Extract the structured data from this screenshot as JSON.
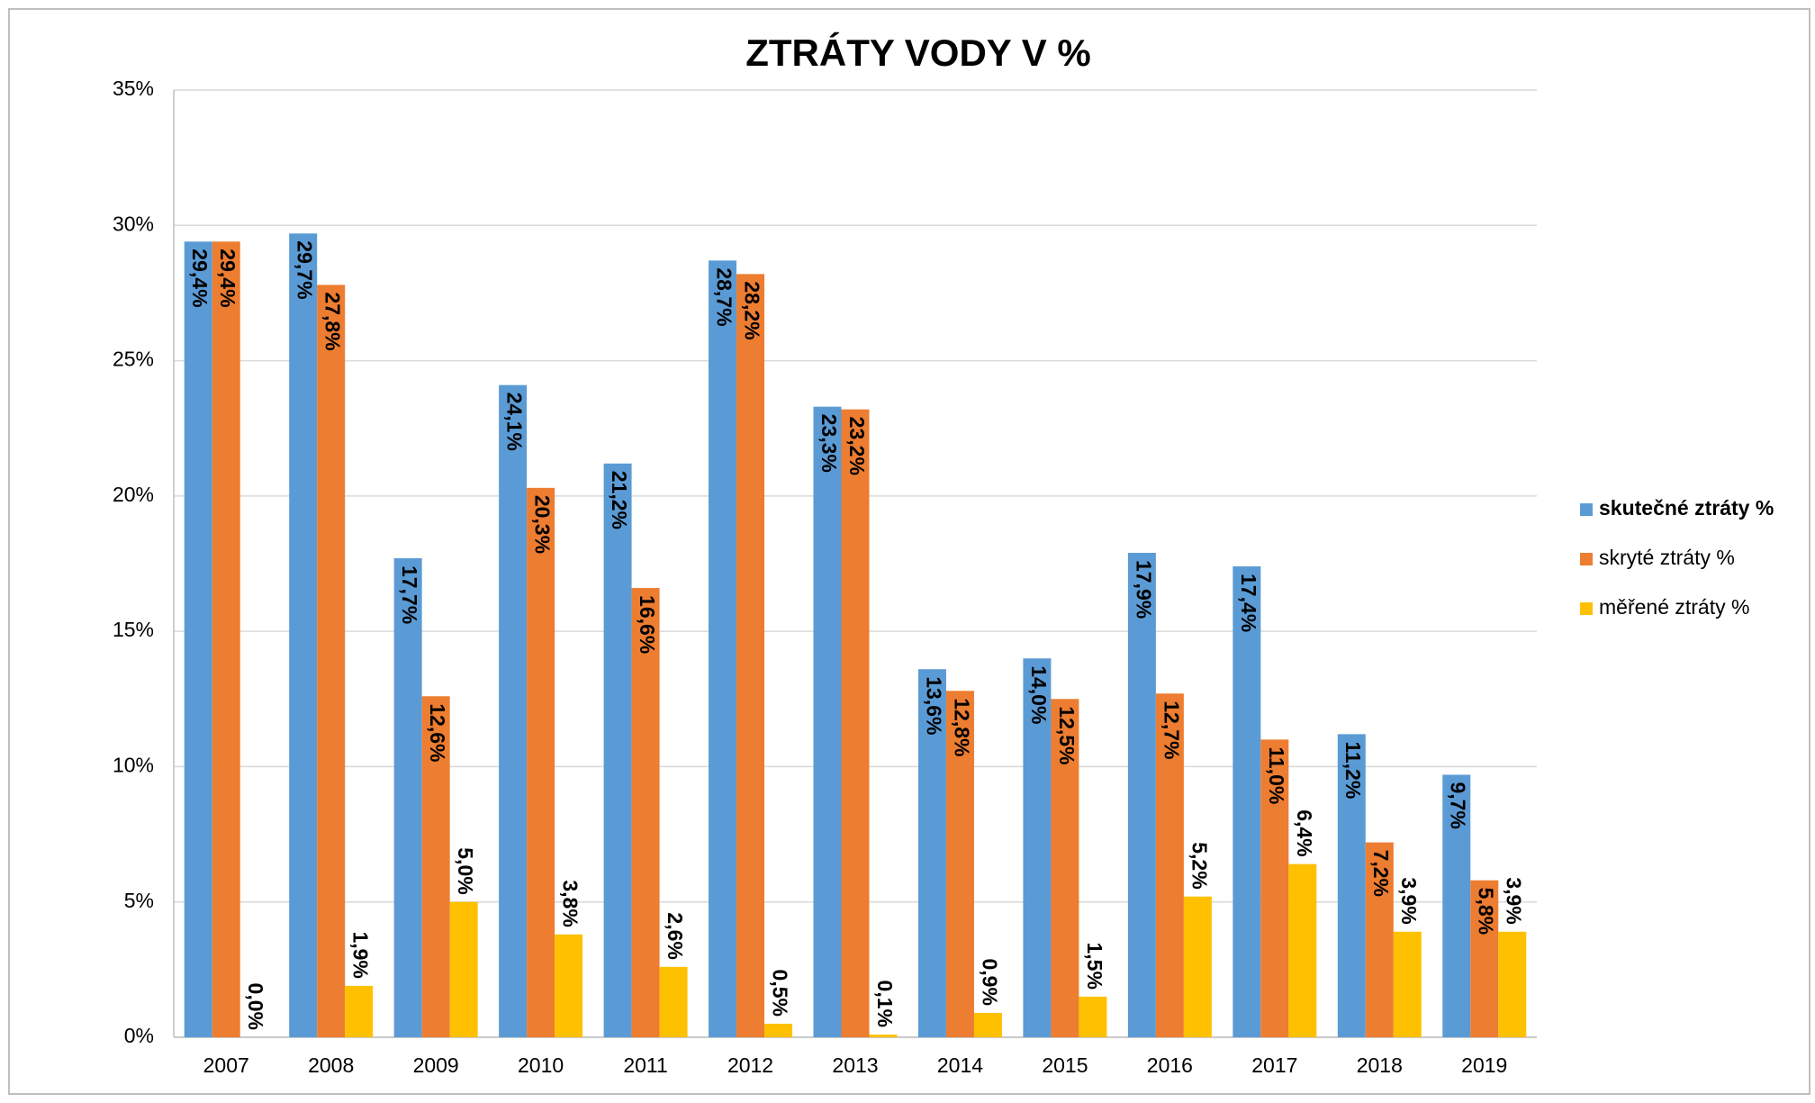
{
  "chart_data": {
    "type": "bar",
    "title": "ZTRÁTY VODY V %",
    "categories": [
      "2007",
      "2008",
      "2009",
      "2010",
      "2011",
      "2012",
      "2013",
      "2014",
      "2015",
      "2016",
      "2017",
      "2018",
      "2019"
    ],
    "series": [
      {
        "name": "skutečné ztráty %",
        "color": "#5b9bd5",
        "values": [
          29.4,
          29.7,
          17.7,
          24.1,
          21.2,
          28.7,
          23.3,
          13.6,
          14.0,
          17.9,
          17.4,
          11.2,
          9.7
        ],
        "value_labels": [
          "29,4%",
          "29,7%",
          "17,7%",
          "24,1%",
          "21,2%",
          "28,7%",
          "23,3%",
          "13,6%",
          "14,0%",
          "17,9%",
          "17,4%",
          "11,2%",
          "9,7%"
        ]
      },
      {
        "name": "skryté ztráty %",
        "color": "#ed7d31",
        "values": [
          29.4,
          27.8,
          12.6,
          20.3,
          16.6,
          28.2,
          23.2,
          12.8,
          12.5,
          12.7,
          11.0,
          7.2,
          5.8
        ],
        "value_labels": [
          "29,4%",
          "27,8%",
          "12,6%",
          "20,3%",
          "16,6%",
          "28,2%",
          "23,2%",
          "12,8%",
          "12,5%",
          "12,7%",
          "11,0%",
          "7,2%",
          "5,8%"
        ]
      },
      {
        "name": "měřené ztráty %",
        "color": "#ffc000",
        "values": [
          0.0,
          1.9,
          5.0,
          3.8,
          2.6,
          0.5,
          0.1,
          0.9,
          1.5,
          5.2,
          6.4,
          3.9,
          3.9
        ],
        "value_labels": [
          "0,0%",
          "1,9%",
          "5,0%",
          "3,8%",
          "2,6%",
          "0,5%",
          "0,1%",
          "0,9%",
          "1,5%",
          "5,2%",
          "6,4%",
          "3,9%",
          "3,9%"
        ]
      }
    ],
    "ylim": [
      0,
      35
    ],
    "yticks": [
      {
        "value": 0,
        "label": "0%"
      },
      {
        "value": 5,
        "label": "5%"
      },
      {
        "value": 10,
        "label": "10%"
      },
      {
        "value": 15,
        "label": "15%"
      },
      {
        "value": 20,
        "label": "20%"
      },
      {
        "value": 25,
        "label": "25%"
      },
      {
        "value": 30,
        "label": "30%"
      },
      {
        "value": 35,
        "label": "35%"
      }
    ],
    "grid": true,
    "legend": "right"
  }
}
